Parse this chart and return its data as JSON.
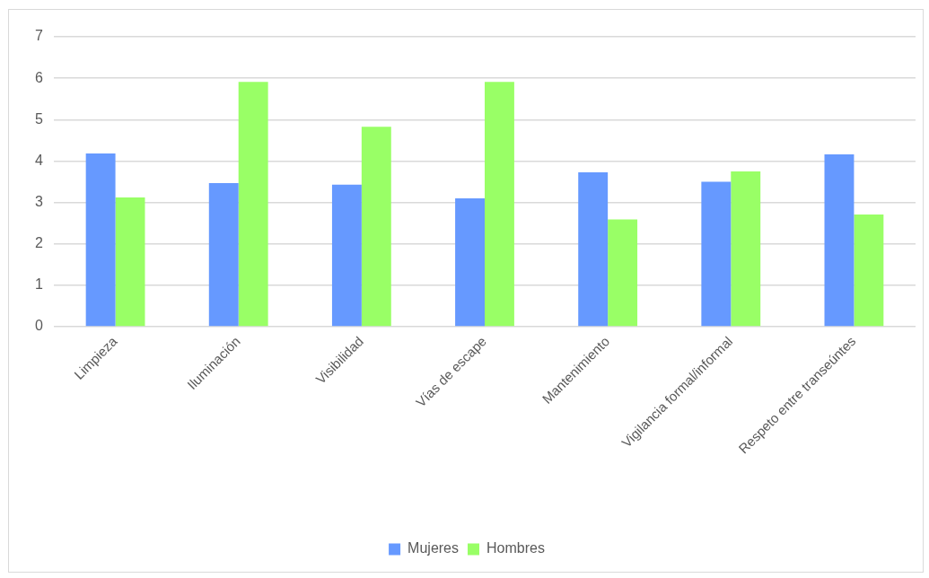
{
  "chart_data": {
    "type": "bar",
    "categories": [
      "Limpieza",
      "Iluminación",
      "Visibilidad",
      "Vías de escape",
      "Mantenimiento",
      "Vigilancia formal/informal",
      "Respeto entre transeúntes"
    ],
    "series": [
      {
        "name": "Mujeres",
        "color": "#6699ff",
        "values": [
          4.18,
          3.47,
          3.43,
          3.1,
          3.73,
          3.5,
          4.16
        ]
      },
      {
        "name": "Hombres",
        "color": "#99ff66",
        "values": [
          3.12,
          5.91,
          4.83,
          5.91,
          2.59,
          3.75,
          2.71
        ]
      }
    ],
    "ylim": [
      0,
      7
    ],
    "yticks": [
      0,
      1,
      2,
      3,
      4,
      5,
      6,
      7
    ],
    "grid": "y",
    "legend": "bottom"
  }
}
